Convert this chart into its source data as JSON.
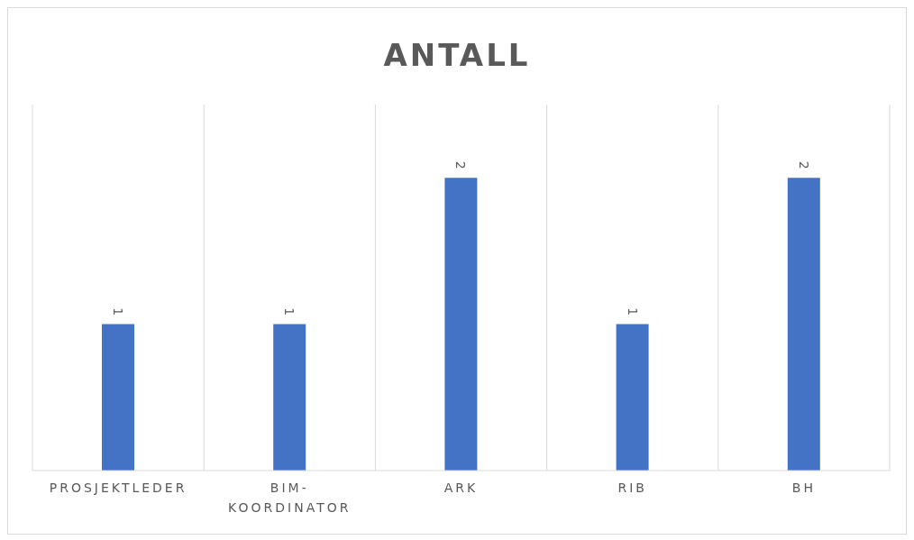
{
  "chart_data": {
    "type": "bar",
    "title": "ANTALL",
    "categories": [
      "PROSJEKTLEDER",
      "BIM-KOORDINATOR",
      "ARK",
      "RIB",
      "BH"
    ],
    "values": [
      1,
      1,
      2,
      1,
      2
    ],
    "color": "#4472c4",
    "ylim": [
      0,
      2.5
    ],
    "tick_labels": "x",
    "grid": "x",
    "data_labels": true
  }
}
